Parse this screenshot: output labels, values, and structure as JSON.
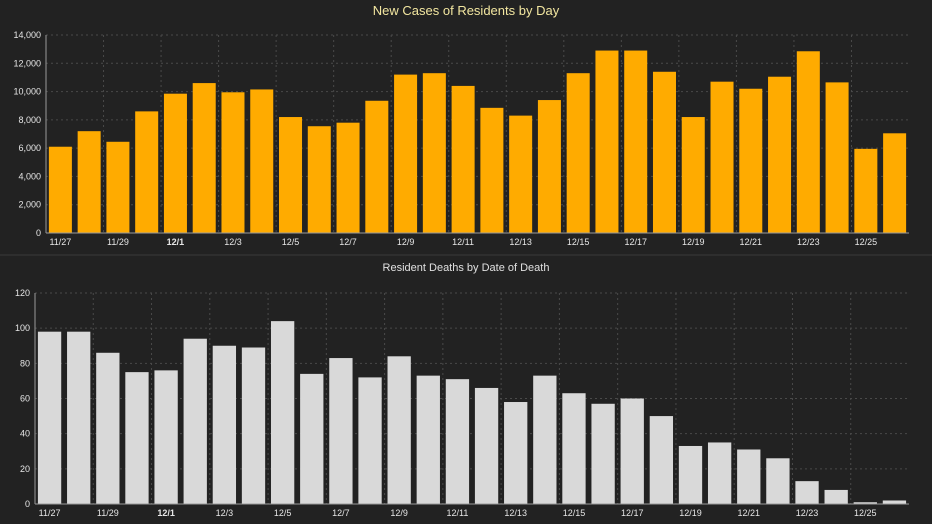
{
  "colors": {
    "background": "#222222",
    "cases_bar": "#FFAB00",
    "deaths_bar": "#D9D9D9",
    "grid": "#4a4a4a",
    "axis": "#9a9a9a"
  },
  "chart_data": [
    {
      "type": "bar",
      "title": "New Cases of Residents by Day",
      "xlabel": "",
      "ylabel": "",
      "ylim": [
        0,
        14000
      ],
      "yticks": [
        0,
        2000,
        4000,
        6000,
        8000,
        10000,
        12000,
        14000
      ],
      "ytick_labels": [
        "0",
        "2,000",
        "4,000",
        "6,000",
        "8,000",
        "10,000",
        "12,000",
        "14,000"
      ],
      "grid": true,
      "categories": [
        "11/27",
        "11/28",
        "11/29",
        "11/30",
        "12/1",
        "12/2",
        "12/3",
        "12/4",
        "12/5",
        "12/6",
        "12/7",
        "12/8",
        "12/9",
        "12/10",
        "12/11",
        "12/12",
        "12/13",
        "12/14",
        "12/15",
        "12/16",
        "12/17",
        "12/18",
        "12/19",
        "12/20",
        "12/21",
        "12/22",
        "12/23",
        "12/24",
        "12/25",
        "12/26"
      ],
      "xtick_labels": [
        "11/27",
        "11/29",
        "12/1",
        "12/3",
        "12/5",
        "12/7",
        "12/9",
        "12/11",
        "12/13",
        "12/15",
        "12/17",
        "12/19",
        "12/21",
        "12/23",
        "12/25"
      ],
      "bold_tick": "12/1",
      "values": [
        6100,
        7200,
        6450,
        8600,
        9850,
        10600,
        9950,
        10150,
        8200,
        7550,
        7800,
        9350,
        11200,
        11300,
        10400,
        8850,
        8300,
        9400,
        11300,
        12900,
        12900,
        11400,
        8200,
        10700,
        10200,
        11050,
        12850,
        10650,
        5950,
        7050
      ]
    },
    {
      "type": "bar",
      "title": "Resident Deaths by Date of Death",
      "xlabel": "",
      "ylabel": "",
      "ylim": [
        0,
        120
      ],
      "yticks": [
        0,
        20,
        40,
        60,
        80,
        100,
        120
      ],
      "ytick_labels": [
        "0",
        "20",
        "40",
        "60",
        "80",
        "100",
        "120"
      ],
      "grid": true,
      "categories": [
        "11/27",
        "11/28",
        "11/29",
        "11/30",
        "12/1",
        "12/2",
        "12/3",
        "12/4",
        "12/5",
        "12/6",
        "12/7",
        "12/8",
        "12/9",
        "12/10",
        "12/11",
        "12/12",
        "12/13",
        "12/14",
        "12/15",
        "12/16",
        "12/17",
        "12/18",
        "12/19",
        "12/20",
        "12/21",
        "12/22",
        "12/23",
        "12/24",
        "12/25",
        "12/26"
      ],
      "xtick_labels": [
        "11/27",
        "11/29",
        "12/1",
        "12/3",
        "12/5",
        "12/7",
        "12/9",
        "12/11",
        "12/13",
        "12/15",
        "12/17",
        "12/19",
        "12/21",
        "12/23",
        "12/25"
      ],
      "bold_tick": "12/1",
      "values": [
        98,
        98,
        86,
        75,
        76,
        94,
        90,
        89,
        104,
        74,
        83,
        72,
        84,
        73,
        71,
        66,
        58,
        73,
        63,
        57,
        60,
        50,
        33,
        35,
        31,
        26,
        13,
        8,
        1,
        2
      ]
    }
  ]
}
